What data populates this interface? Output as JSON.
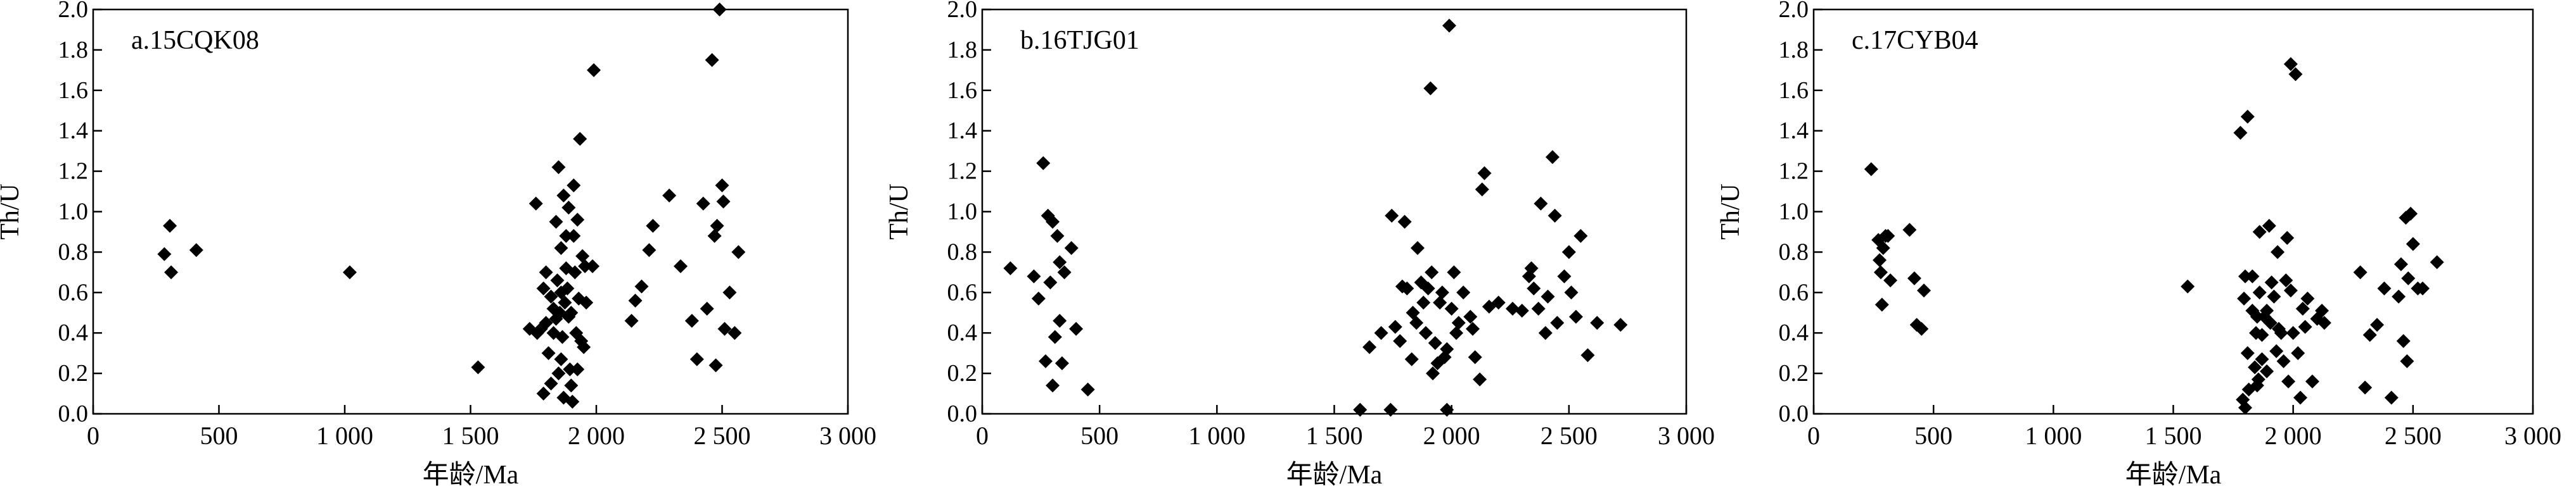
{
  "chart_data": [
    {
      "type": "scatter",
      "panel_label": "a.15CQK08",
      "xlabel": "年龄/Ma",
      "ylabel": "Th/U",
      "xlim": [
        0,
        3000
      ],
      "ylim": [
        0,
        2.0
      ],
      "xticks": [
        0,
        500,
        1000,
        1500,
        2000,
        2500,
        3000
      ],
      "xtick_labels": [
        "0",
        "500",
        "1 000",
        "1 500",
        "2 000",
        "2 500",
        "3 000"
      ],
      "yticks": [
        0,
        0.2,
        0.4,
        0.6,
        0.8,
        1.0,
        1.2,
        1.4,
        1.6,
        1.8,
        2.0
      ],
      "ytick_labels": [
        "0.0",
        "0.2",
        "0.4",
        "0.6",
        "0.8",
        "1.0",
        "1.2",
        "1.4",
        "1.6",
        "1.8",
        "2.0"
      ],
      "marker": "diamond",
      "color": "#000000",
      "grid": false,
      "points": [
        [
          283,
          0.79
        ],
        [
          305,
          0.93
        ],
        [
          310,
          0.7
        ],
        [
          410,
          0.81
        ],
        [
          1020,
          0.7
        ],
        [
          1530,
          0.23
        ],
        [
          1735,
          0.42
        ],
        [
          1760,
          1.04
        ],
        [
          1765,
          0.4
        ],
        [
          1780,
          0.42
        ],
        [
          1790,
          0.62
        ],
        [
          1790,
          0.1
        ],
        [
          1800,
          0.7
        ],
        [
          1800,
          0.45
        ],
        [
          1810,
          0.3
        ],
        [
          1820,
          0.15
        ],
        [
          1820,
          0.58
        ],
        [
          1830,
          0.4
        ],
        [
          1830,
          0.52
        ],
        [
          1840,
          0.95
        ],
        [
          1840,
          0.47
        ],
        [
          1845,
          0.66
        ],
        [
          1850,
          0.2
        ],
        [
          1850,
          1.22
        ],
        [
          1855,
          0.5
        ],
        [
          1860,
          0.27
        ],
        [
          1860,
          0.6
        ],
        [
          1860,
          0.82
        ],
        [
          1865,
          0.38
        ],
        [
          1870,
          1.08
        ],
        [
          1870,
          0.08
        ],
        [
          1875,
          0.55
        ],
        [
          1880,
          0.72
        ],
        [
          1880,
          0.88
        ],
        [
          1885,
          0.62
        ],
        [
          1890,
          1.02
        ],
        [
          1890,
          0.48
        ],
        [
          1895,
          0.22
        ],
        [
          1900,
          0.14
        ],
        [
          1900,
          0.5
        ],
        [
          1905,
          0.06
        ],
        [
          1910,
          1.13
        ],
        [
          1910,
          0.88
        ],
        [
          1915,
          0.7
        ],
        [
          1920,
          0.4
        ],
        [
          1925,
          0.96
        ],
        [
          1925,
          0.22
        ],
        [
          1930,
          0.57
        ],
        [
          1935,
          1.36
        ],
        [
          1940,
          0.36
        ],
        [
          1945,
          0.78
        ],
        [
          1950,
          0.33
        ],
        [
          1955,
          0.73
        ],
        [
          1960,
          0.55
        ],
        [
          1985,
          0.73
        ],
        [
          1990,
          1.7
        ],
        [
          2140,
          0.46
        ],
        [
          2155,
          0.56
        ],
        [
          2180,
          0.63
        ],
        [
          2210,
          0.81
        ],
        [
          2225,
          0.93
        ],
        [
          2290,
          1.08
        ],
        [
          2335,
          0.73
        ],
        [
          2380,
          0.46
        ],
        [
          2400,
          0.27
        ],
        [
          2425,
          1.04
        ],
        [
          2440,
          0.52
        ],
        [
          2460,
          1.75
        ],
        [
          2470,
          0.88
        ],
        [
          2475,
          0.24
        ],
        [
          2480,
          0.93
        ],
        [
          2490,
          2.0
        ],
        [
          2500,
          1.13
        ],
        [
          2505,
          1.05
        ],
        [
          2510,
          0.42
        ],
        [
          2530,
          0.6
        ],
        [
          2550,
          0.4
        ],
        [
          2565,
          0.8
        ]
      ]
    },
    {
      "type": "scatter",
      "panel_label": "b.16TJG01",
      "xlabel": "年龄/Ma",
      "ylabel": "Th/U",
      "xlim": [
        0,
        3000
      ],
      "ylim": [
        0,
        2.0
      ],
      "xticks": [
        0,
        500,
        1000,
        1500,
        2000,
        2500,
        3000
      ],
      "xtick_labels": [
        "0",
        "500",
        "1 000",
        "1 500",
        "2 000",
        "2 500",
        "3 000"
      ],
      "yticks": [
        0,
        0.2,
        0.4,
        0.6,
        0.8,
        1.0,
        1.2,
        1.4,
        1.6,
        1.8,
        2.0
      ],
      "ytick_labels": [
        "0.0",
        "0.2",
        "0.4",
        "0.6",
        "0.8",
        "1.0",
        "1.2",
        "1.4",
        "1.6",
        "1.8",
        "2.0"
      ],
      "marker": "diamond",
      "color": "#000000",
      "grid": false,
      "points": [
        [
          120,
          0.72
        ],
        [
          220,
          0.68
        ],
        [
          240,
          0.57
        ],
        [
          260,
          1.24
        ],
        [
          270,
          0.26
        ],
        [
          280,
          0.98
        ],
        [
          290,
          0.65
        ],
        [
          300,
          0.14
        ],
        [
          300,
          0.95
        ],
        [
          310,
          0.38
        ],
        [
          320,
          0.88
        ],
        [
          330,
          0.75
        ],
        [
          330,
          0.46
        ],
        [
          340,
          0.25
        ],
        [
          350,
          0.7
        ],
        [
          380,
          0.82
        ],
        [
          400,
          0.42
        ],
        [
          450,
          0.12
        ],
        [
          1610,
          0.02
        ],
        [
          1650,
          0.33
        ],
        [
          1700,
          0.4
        ],
        [
          1740,
          0.02
        ],
        [
          1745,
          0.98
        ],
        [
          1760,
          0.43
        ],
        [
          1780,
          0.36
        ],
        [
          1790,
          0.63
        ],
        [
          1800,
          0.95
        ],
        [
          1810,
          0.62
        ],
        [
          1830,
          0.27
        ],
        [
          1835,
          0.5
        ],
        [
          1850,
          0.45
        ],
        [
          1855,
          0.82
        ],
        [
          1870,
          0.65
        ],
        [
          1880,
          0.55
        ],
        [
          1890,
          0.4
        ],
        [
          1900,
          0.62
        ],
        [
          1910,
          1.61
        ],
        [
          1915,
          0.7
        ],
        [
          1920,
          0.2
        ],
        [
          1930,
          0.35
        ],
        [
          1940,
          0.25
        ],
        [
          1950,
          0.55
        ],
        [
          1960,
          0.6
        ],
        [
          1970,
          0.28
        ],
        [
          1980,
          0.32
        ],
        [
          1980,
          0.02
        ],
        [
          1990,
          1.92
        ],
        [
          2000,
          0.52
        ],
        [
          2010,
          0.7
        ],
        [
          2020,
          0.4
        ],
        [
          2030,
          0.45
        ],
        [
          2050,
          0.6
        ],
        [
          2080,
          0.48
        ],
        [
          2090,
          0.42
        ],
        [
          2100,
          0.28
        ],
        [
          2120,
          0.17
        ],
        [
          2130,
          1.11
        ],
        [
          2140,
          1.19
        ],
        [
          2160,
          0.53
        ],
        [
          2200,
          0.55
        ],
        [
          2260,
          0.52
        ],
        [
          2300,
          0.51
        ],
        [
          2330,
          0.68
        ],
        [
          2340,
          0.72
        ],
        [
          2350,
          0.62
        ],
        [
          2370,
          0.52
        ],
        [
          2380,
          1.04
        ],
        [
          2400,
          0.4
        ],
        [
          2410,
          0.58
        ],
        [
          2430,
          1.27
        ],
        [
          2440,
          0.98
        ],
        [
          2450,
          0.45
        ],
        [
          2480,
          0.68
        ],
        [
          2500,
          0.8
        ],
        [
          2510,
          0.6
        ],
        [
          2530,
          0.48
        ],
        [
          2550,
          0.88
        ],
        [
          2580,
          0.29
        ],
        [
          2620,
          0.45
        ],
        [
          2720,
          0.44
        ]
      ]
    },
    {
      "type": "scatter",
      "panel_label": "c.17CYB04",
      "xlabel": "年龄/Ma",
      "ylabel": "Th/U",
      "xlim": [
        0,
        3000
      ],
      "ylim": [
        0,
        2.0
      ],
      "xticks": [
        0,
        500,
        1000,
        1500,
        2000,
        2500,
        3000
      ],
      "xtick_labels": [
        "0",
        "500",
        "1 000",
        "1 500",
        "2 000",
        "2 500",
        "3 000"
      ],
      "yticks": [
        0,
        0.2,
        0.4,
        0.6,
        0.8,
        1.0,
        1.2,
        1.4,
        1.6,
        1.8,
        2.0
      ],
      "ytick_labels": [
        "0.0",
        "0.2",
        "0.4",
        "0.6",
        "0.8",
        "1.0",
        "1.2",
        "1.4",
        "1.6",
        "1.8",
        "2.0"
      ],
      "marker": "diamond",
      "color": "#000000",
      "grid": false,
      "points": [
        [
          240,
          1.21
        ],
        [
          270,
          0.86
        ],
        [
          275,
          0.76
        ],
        [
          280,
          0.7
        ],
        [
          285,
          0.54
        ],
        [
          290,
          0.82
        ],
        [
          300,
          0.88
        ],
        [
          310,
          0.88
        ],
        [
          320,
          0.66
        ],
        [
          400,
          0.91
        ],
        [
          420,
          0.67
        ],
        [
          430,
          0.44
        ],
        [
          450,
          0.42
        ],
        [
          460,
          0.61
        ],
        [
          1560,
          0.63
        ],
        [
          1780,
          1.39
        ],
        [
          1790,
          0.07
        ],
        [
          1795,
          0.57
        ],
        [
          1800,
          0.68
        ],
        [
          1800,
          0.03
        ],
        [
          1810,
          1.47
        ],
        [
          1810,
          0.3
        ],
        [
          1815,
          0.12
        ],
        [
          1830,
          0.51
        ],
        [
          1830,
          0.68
        ],
        [
          1840,
          0.23
        ],
        [
          1845,
          0.4
        ],
        [
          1850,
          0.48
        ],
        [
          1850,
          0.14
        ],
        [
          1855,
          0.17
        ],
        [
          1860,
          0.9
        ],
        [
          1860,
          0.6
        ],
        [
          1870,
          0.27
        ],
        [
          1870,
          0.39
        ],
        [
          1880,
          0.48
        ],
        [
          1890,
          0.51
        ],
        [
          1890,
          0.21
        ],
        [
          1900,
          0.93
        ],
        [
          1905,
          0.45
        ],
        [
          1910,
          0.65
        ],
        [
          1920,
          0.58
        ],
        [
          1930,
          0.31
        ],
        [
          1935,
          0.8
        ],
        [
          1940,
          0.42
        ],
        [
          1950,
          0.4
        ],
        [
          1960,
          0.26
        ],
        [
          1970,
          0.66
        ],
        [
          1975,
          0.87
        ],
        [
          1980,
          0.16
        ],
        [
          1990,
          1.73
        ],
        [
          1990,
          0.61
        ],
        [
          2000,
          0.4
        ],
        [
          2010,
          1.68
        ],
        [
          2020,
          0.3
        ],
        [
          2030,
          0.08
        ],
        [
          2040,
          0.52
        ],
        [
          2050,
          0.43
        ],
        [
          2060,
          0.57
        ],
        [
          2080,
          0.16
        ],
        [
          2100,
          0.47
        ],
        [
          2120,
          0.51
        ],
        [
          2130,
          0.45
        ],
        [
          2280,
          0.7
        ],
        [
          2300,
          0.13
        ],
        [
          2320,
          0.39
        ],
        [
          2350,
          0.44
        ],
        [
          2380,
          0.62
        ],
        [
          2410,
          0.08
        ],
        [
          2440,
          0.58
        ],
        [
          2450,
          0.74
        ],
        [
          2460,
          0.36
        ],
        [
          2470,
          0.97
        ],
        [
          2475,
          0.26
        ],
        [
          2480,
          0.67
        ],
        [
          2490,
          0.99
        ],
        [
          2500,
          0.84
        ],
        [
          2520,
          0.62
        ],
        [
          2540,
          0.62
        ],
        [
          2600,
          0.75
        ]
      ]
    }
  ]
}
